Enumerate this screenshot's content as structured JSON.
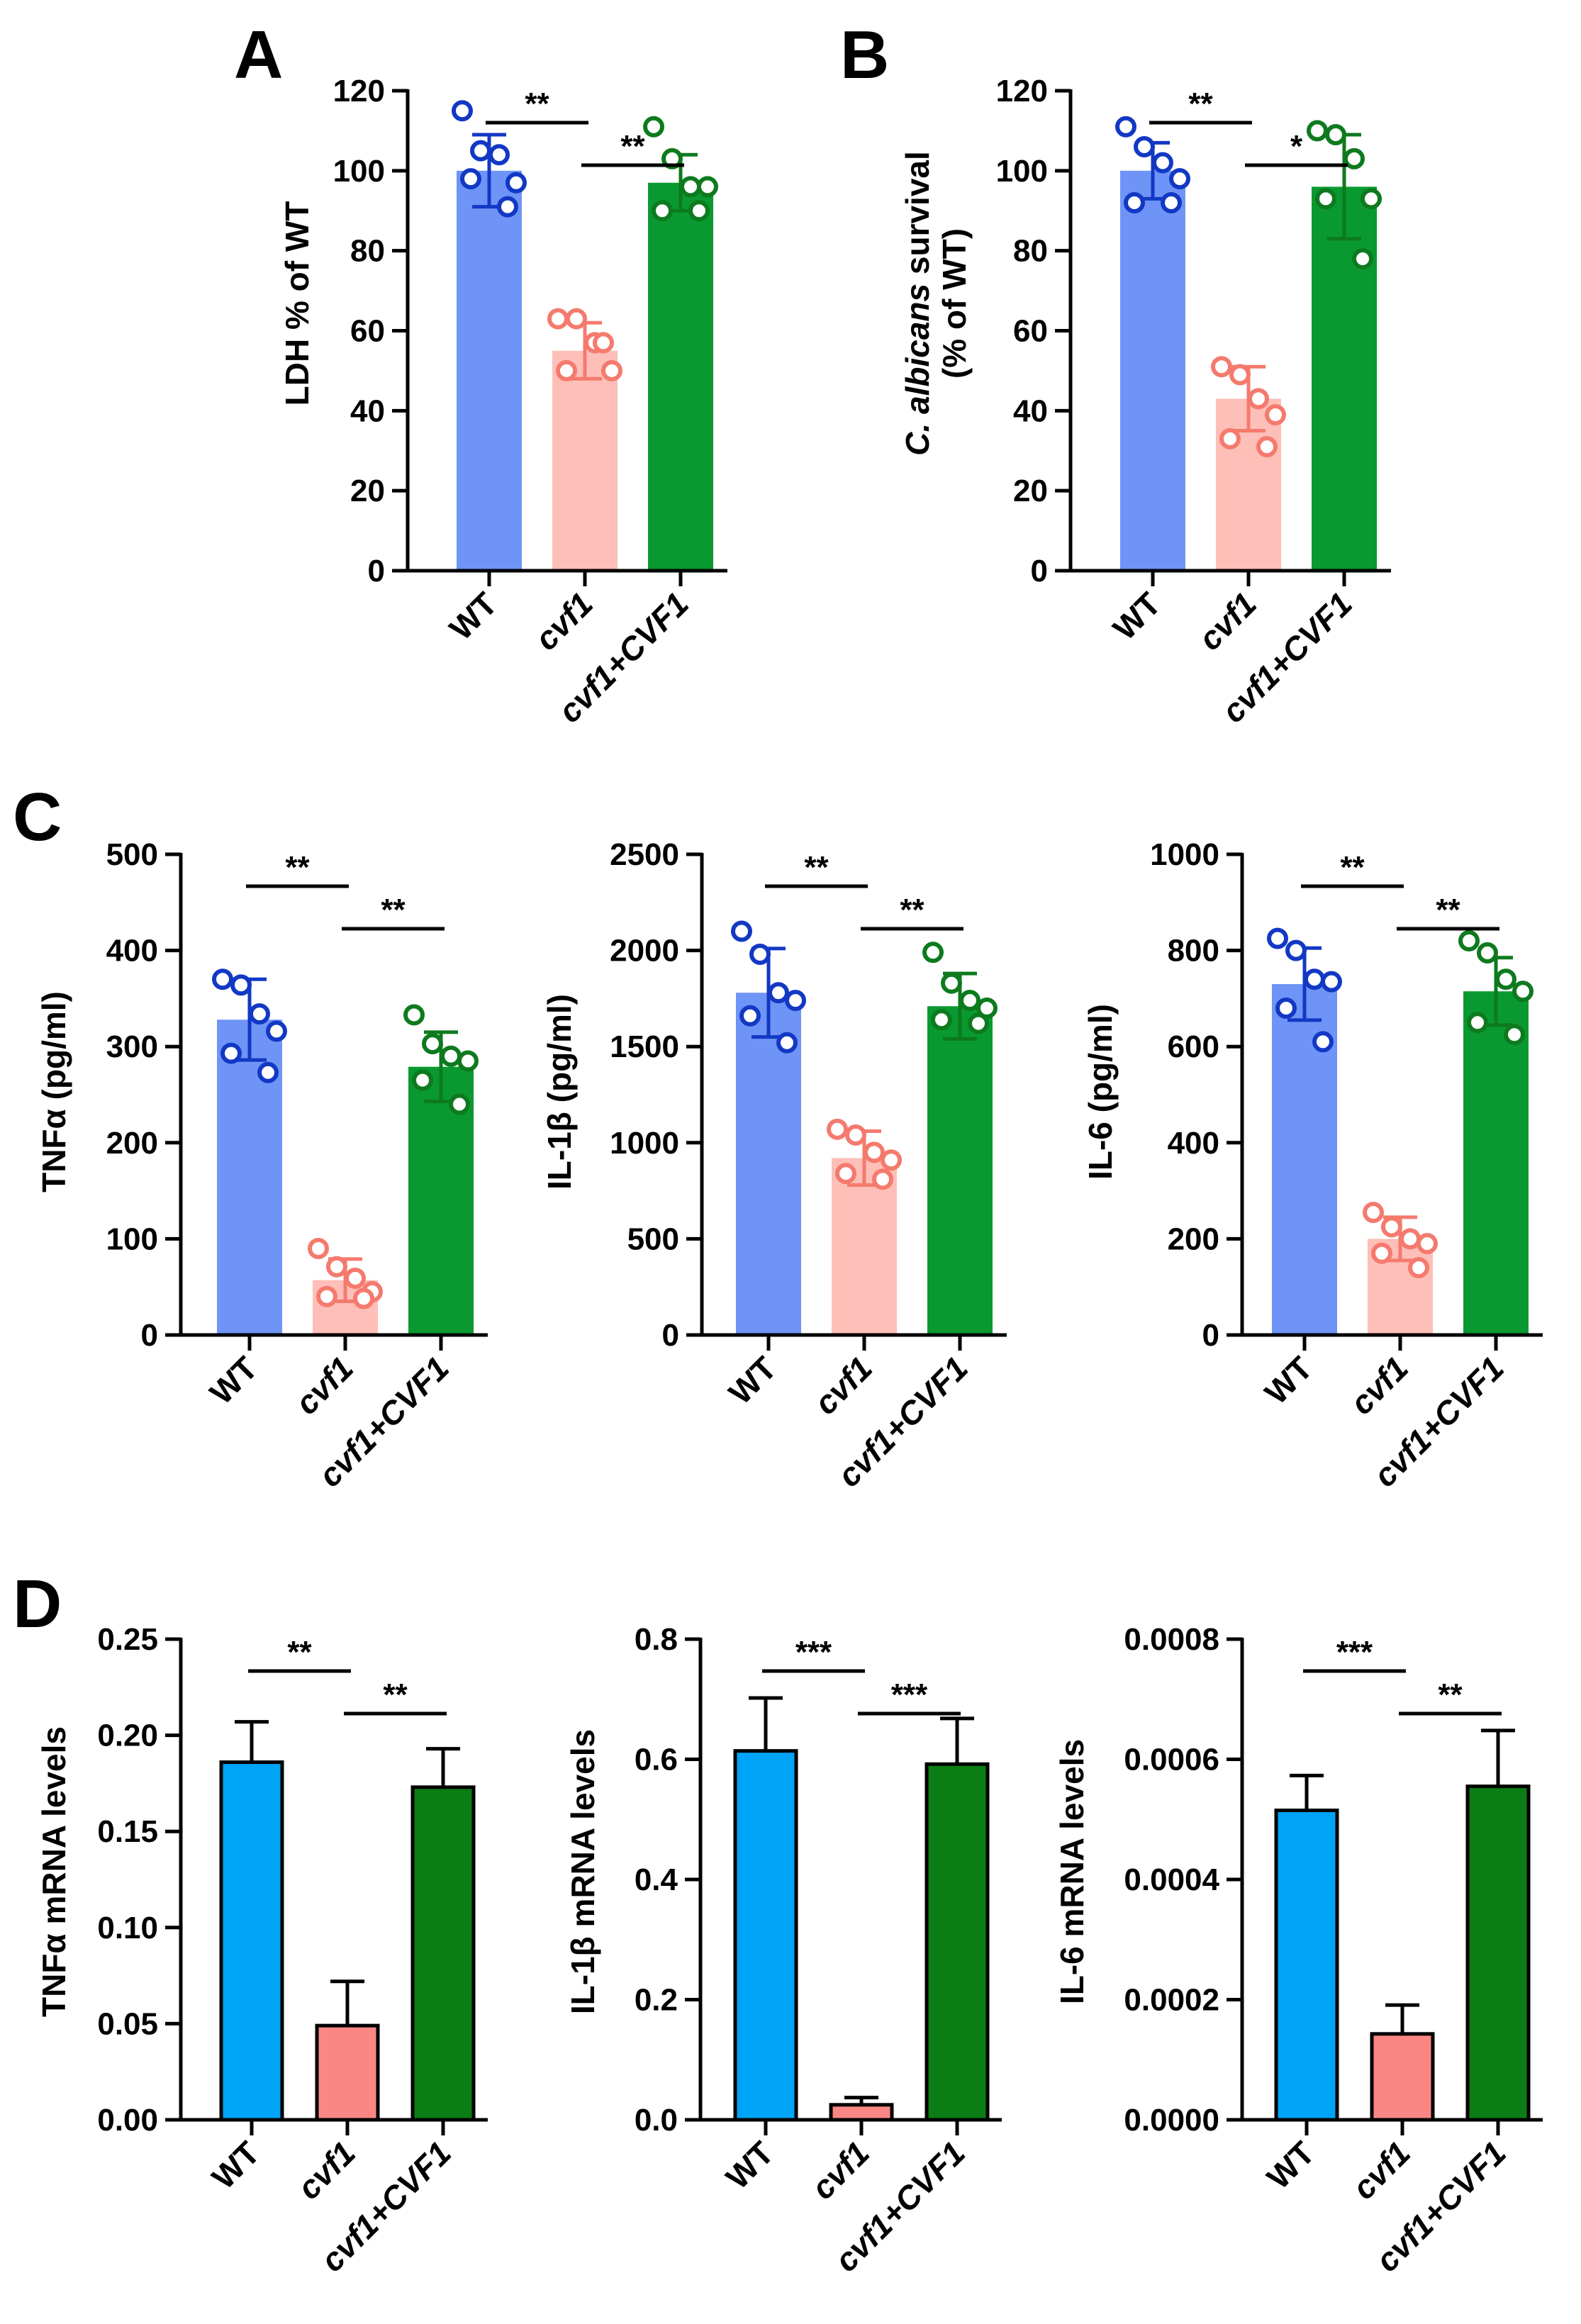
{
  "colors": {
    "wt": "#6f94f7",
    "mut": "#fdbfb7",
    "comp": "#0a9930",
    "wt_dot": "#1238c4",
    "mut_dot": "#f57a6e",
    "comp_dot": "#0d7a1e",
    "wt_d": "#00a4f7",
    "mut_d": "#fa8784",
    "comp_d": "#0b7d14"
  },
  "chart_data": [
    {
      "panel": "A",
      "type": "bar",
      "ylabel": "LDH % of WT",
      "ylim": [
        0,
        120
      ],
      "yticks": [
        "0",
        "20",
        "40",
        "60",
        "80",
        "100",
        "120"
      ],
      "categories": [
        "WT",
        "cvf1",
        "cvf1+CVF1"
      ],
      "values": [
        100,
        55,
        97
      ],
      "errors": [
        9,
        7,
        7
      ],
      "points": [
        [
          115,
          105,
          104,
          97,
          98,
          91
        ],
        [
          63,
          63,
          57,
          50,
          50,
          57
        ],
        [
          111,
          103,
          96,
          96,
          90,
          90
        ]
      ],
      "significance": [
        {
          "label": "**",
          "from": 0,
          "to": 1
        },
        {
          "label": "**",
          "from": 1,
          "to": 2
        }
      ]
    },
    {
      "panel": "B",
      "type": "bar",
      "ylabel_italic": "C. albicans",
      "ylabel_rest": " survival",
      "ylabel_line2": "(% of WT)",
      "ylim": [
        0,
        120
      ],
      "yticks": [
        "0",
        "20",
        "40",
        "60",
        "80",
        "100",
        "120"
      ],
      "categories": [
        "WT",
        "cvf1",
        "cvf1+CVF1"
      ],
      "values": [
        100,
        43,
        96
      ],
      "errors": [
        7,
        8,
        13
      ],
      "points": [
        [
          111,
          106,
          102,
          98,
          92,
          92
        ],
        [
          51,
          49,
          43,
          39,
          33,
          31
        ],
        [
          110,
          109,
          103,
          93,
          93,
          78
        ]
      ],
      "significance": [
        {
          "label": "**",
          "from": 0,
          "to": 1
        },
        {
          "label": "*",
          "from": 1,
          "to": 2
        }
      ]
    },
    {
      "panel": "C",
      "type": "bar",
      "ylabel": "TNFα (pg/ml)",
      "ylim": [
        0,
        500
      ],
      "yticks": [
        "0",
        "100",
        "200",
        "300",
        "400",
        "500"
      ],
      "categories": [
        "WT",
        "cvf1",
        "cvf1+CVF1"
      ],
      "values": [
        328,
        57,
        279
      ],
      "errors": [
        42,
        22,
        36
      ],
      "points": [
        [
          370,
          364,
          334,
          316,
          293,
          273
        ],
        [
          90,
          71,
          59,
          45,
          40,
          38
        ],
        [
          333,
          303,
          290,
          285,
          265,
          240
        ]
      ],
      "significance": [
        {
          "label": "**",
          "from": 0,
          "to": 1
        },
        {
          "label": "**",
          "from": 1,
          "to": 2
        }
      ]
    },
    {
      "type": "bar",
      "ylabel": "IL-1β (pg/ml)",
      "ylim": [
        0,
        2500
      ],
      "yticks": [
        "0",
        "500",
        "1000",
        "1500",
        "2000",
        "2500"
      ],
      "categories": [
        "WT",
        "cvf1",
        "cvf1+CVF1"
      ],
      "values": [
        1780,
        920,
        1710
      ],
      "errors": [
        230,
        140,
        170
      ],
      "points": [
        [
          2100,
          1980,
          1780,
          1740,
          1660,
          1520
        ],
        [
          1070,
          1040,
          950,
          910,
          840,
          810
        ],
        [
          1990,
          1830,
          1740,
          1700,
          1640,
          1620
        ]
      ],
      "significance": [
        {
          "label": "**",
          "from": 0,
          "to": 1
        },
        {
          "label": "**",
          "from": 1,
          "to": 2
        }
      ]
    },
    {
      "type": "bar",
      "ylabel": "IL-6 (pg/ml)",
      "ylim": [
        0,
        1000
      ],
      "yticks": [
        "0",
        "200",
        "400",
        "600",
        "800",
        "1000"
      ],
      "categories": [
        "WT",
        "cvf1",
        "cvf1+CVF1"
      ],
      "values": [
        730,
        200,
        715
      ],
      "errors": [
        75,
        45,
        70
      ],
      "points": [
        [
          825,
          800,
          740,
          735,
          680,
          610
        ],
        [
          255,
          225,
          200,
          190,
          170,
          140
        ],
        [
          820,
          795,
          740,
          715,
          650,
          625
        ]
      ],
      "significance": [
        {
          "label": "**",
          "from": 0,
          "to": 1
        },
        {
          "label": "**",
          "from": 1,
          "to": 2
        }
      ]
    },
    {
      "panel": "D",
      "type": "bar",
      "ylabel": "TNFα mRNA levels",
      "ylim": [
        0,
        0.25
      ],
      "yticks": [
        "0.00",
        "0.05",
        "0.10",
        "0.15",
        "0.20",
        "0.25"
      ],
      "categories": [
        "WT",
        "cvf1",
        "cvf1+CVF1"
      ],
      "values": [
        0.186,
        0.049,
        0.173
      ],
      "errors": [
        0.021,
        0.023,
        0.02
      ],
      "significance": [
        {
          "label": "**",
          "from": 0,
          "to": 1
        },
        {
          "label": "**",
          "from": 1,
          "to": 2
        }
      ]
    },
    {
      "type": "bar",
      "ylabel": "IL-1β mRNA levels",
      "ylim": [
        0,
        0.8
      ],
      "yticks": [
        "0.0",
        "0.2",
        "0.4",
        "0.6",
        "0.8"
      ],
      "categories": [
        "WT",
        "cvf1",
        "cvf1+CVF1"
      ],
      "values": [
        0.614,
        0.025,
        0.592
      ],
      "errors": [
        0.088,
        0.012,
        0.076
      ],
      "significance": [
        {
          "label": "***",
          "from": 0,
          "to": 1
        },
        {
          "label": "***",
          "from": 1,
          "to": 2
        }
      ]
    },
    {
      "type": "bar",
      "ylabel": "IL-6 mRNA levels",
      "ylim": [
        0,
        0.0008
      ],
      "yticks": [
        "0.0000",
        "0.0002",
        "0.0004",
        "0.0006",
        "0.0008"
      ],
      "categories": [
        "WT",
        "cvf1",
        "cvf1+CVF1"
      ],
      "values": [
        0.000515,
        0.000143,
        0.000555
      ],
      "errors": [
        5.8e-05,
        4.8e-05,
        9.3e-05
      ],
      "significance": [
        {
          "label": "***",
          "from": 0,
          "to": 1
        },
        {
          "label": "**",
          "from": 1,
          "to": 2
        }
      ]
    }
  ]
}
